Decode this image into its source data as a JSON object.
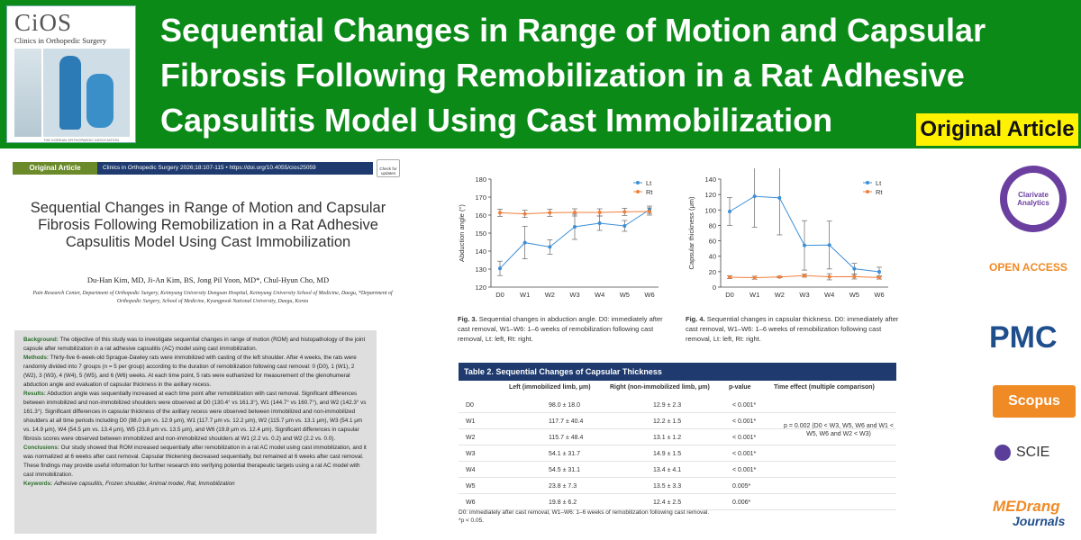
{
  "banner": {
    "title": "Sequential Changes in Range of Motion and Capsular Fibrosis Following Remobilization in a Rat Adhesive Capsulitis Model Using Cast Immobilization",
    "badge": "Original Article",
    "cover_logo": "CiOS",
    "cover_subtitle": "Clinics in Orthopedic Surgery",
    "cover_footer": "THE KOREAN ORTHOPAEDIC ASSOCIATION"
  },
  "paper": {
    "label": "Original Article",
    "meta": "Clinics in Orthopedic Surgery 2026;18:107-115 • https://doi.org/10.4055/cios25059",
    "check": "Check for updates",
    "title": "Sequential Changes in Range of Motion and Capsular Fibrosis Following Remobilization in a Rat Adhesive Capsulitis Model Using Cast Immobilization",
    "authors": "Du-Han Kim, MD, Ji-An Kim, BS, Jong Pil Yoon, MD*, Chul-Hyun Cho, MD",
    "affiliation": "Pain Research Center, Department of Orthopedic Surgery, Keimyung University Dongsan Hospital, Keimyung University School of Medicine, Daegu, *Department of Orthopedic Surgery, School of Medicine, Kyungpook National University, Daegu, Korea",
    "abstract": [
      {
        "head": "Background:",
        "text": "The objective of this study was to investigate sequential changes in range of motion (ROM) and histopathology of the joint capsule after remobilization in a rat adhesive capsulitis (AC) model using cast immobilization."
      },
      {
        "head": "Methods:",
        "text": "Thirty-five 6-week-old Sprague-Dawley rats were immobilized with casting of the left shoulder. After 4 weeks, the rats were randomly divided into 7 groups (n = 5 per group) according to the duration of remobilization following cast removal: 0 (D0), 1 (W1), 2 (W2), 3 (W3), 4 (W4), 5 (W5), and 6 (W6) weeks. At each time point, 5 rats were euthanized for measurement of the glenohumeral abduction angle and evaluation of capsular thickness in the axillary recess."
      },
      {
        "head": "Results:",
        "text": "Abduction angle was sequentially increased at each time point after remobilization with cast removal. Significant differences between immobilized and non-immobilized shoulders were observed at D0 (130.4° vs 161.3°), W1 (144.7° vs 160.7°), and W2 (142.3° vs 161.3°). Significant differences in capsular thickness of the axillary recess were observed between immobilized and non-immobilized shoulders at all time periods including D0 (98.0 μm vs. 12.9 μm), W1 (117.7 μm vs. 12.2 μm), W2 (115.7 μm vs. 13.1 μm), W3 (54.1 μm vs. 14.9 μm), W4 (54.5 μm vs. 13.4 μm), W5 (23.8 μm vs. 13.5 μm), and W6 (19.8 μm vs. 12.4 μm). Significant differences in capsular fibrosis scores were observed between immobilized and non-immobilized shoulders at W1 (2.2 vs. 0.2) and W2 (2.2 vs. 0.0)."
      },
      {
        "head": "Conclusions:",
        "text": "Our study showed that ROM increased sequentially after remobilization in a rat AC model using cast immobilization, and it was normalized at 6 weeks after cast removal. Capsular thickening decreased sequentially, but remained at 6 weeks after cast removal. These findings may provide useful information for further research into verifying potential therapeutic targets using a rat AC model with cast immobilization."
      },
      {
        "head": "Keywords:",
        "text": "Adhesive capsulitis, Frozen shoulder, Animal model, Rat, Immobilization"
      }
    ]
  },
  "chart_data": [
    {
      "type": "line",
      "title": "",
      "xlabel": "",
      "ylabel": "Abduction angle (°)",
      "categories": [
        "D0",
        "W1",
        "W2",
        "W3",
        "W4",
        "W5",
        "W6"
      ],
      "ylim": [
        120,
        180
      ],
      "yticks": [
        120,
        130,
        140,
        150,
        160,
        170,
        180
      ],
      "series": [
        {
          "name": "Lt",
          "color": "#3b8fd6",
          "values": [
            130.4,
            144.7,
            142.3,
            153.5,
            155.5,
            154,
            163
          ],
          "err": [
            4,
            9,
            4,
            7,
            4,
            3,
            2
          ]
        },
        {
          "name": "Rt",
          "color": "#f07f3c",
          "values": [
            161.3,
            160.7,
            161.3,
            161.5,
            161.5,
            161.8,
            162
          ],
          "err": [
            2,
            2,
            2,
            2,
            2,
            2,
            2
          ]
        }
      ],
      "caption_label": "Fig. 3.",
      "caption": "Sequential changes in abduction angle. D0: immediately after cast removal, W1–W6: 1–6 weeks of remobilization following cast removal, Lt: left, Rt: right."
    },
    {
      "type": "line",
      "title": "",
      "xlabel": "",
      "ylabel": "Capsular thickness (μm)",
      "categories": [
        "D0",
        "W1",
        "W2",
        "W3",
        "W4",
        "W5",
        "W6"
      ],
      "ylim": [
        0,
        140
      ],
      "yticks": [
        0,
        20,
        40,
        60,
        80,
        100,
        120,
        140
      ],
      "series": [
        {
          "name": "Lt",
          "color": "#3b8fd6",
          "values": [
            98.0,
            117.7,
            115.7,
            54.1,
            54.5,
            23.8,
            19.8
          ],
          "err": [
            18,
            40,
            48,
            32,
            31,
            7,
            6
          ]
        },
        {
          "name": "Rt",
          "color": "#f07f3c",
          "values": [
            12.9,
            12.2,
            13.1,
            14.9,
            13.4,
            13.5,
            12.4
          ],
          "err": [
            2,
            2,
            1,
            2,
            4,
            3,
            2
          ]
        }
      ],
      "caption_label": "Fig. 4.",
      "caption": "Sequential changes in capsular thickness. D0: immediately after cast removal, W1–W6: 1–6 weeks of remobilization following cast removal, Lt: left, Rt: right."
    }
  ],
  "table": {
    "title": "Table 2. Sequential Changes of Capsular Thickness",
    "headers": [
      "",
      "Left (immobilized limb, μm)",
      "Right (non-immobilized limb, μm)",
      "p-value",
      "Time effect (multiple comparison)"
    ],
    "rows": [
      [
        "D0",
        "98.0 ± 18.0",
        "12.9 ± 2.3",
        "< 0.001*"
      ],
      [
        "W1",
        "117.7 ± 40.4",
        "12.2 ± 1.5",
        "< 0.001*"
      ],
      [
        "W2",
        "115.7 ± 48.4",
        "13.1 ± 1.2",
        "< 0.001*"
      ],
      [
        "W3",
        "54.1 ± 31.7",
        "14.9 ± 1.5",
        "< 0.001*"
      ],
      [
        "W4",
        "54.5 ± 31.1",
        "13.4 ± 4.1",
        "< 0.001*"
      ],
      [
        "W5",
        "23.8 ± 7.3",
        "13.5 ± 3.3",
        "0.005*"
      ],
      [
        "W6",
        "19.8 ± 6.2",
        "12.4 ± 2.5",
        "0.006*"
      ]
    ],
    "time_effect": "p = 0.002 (D0 < W3, W5, W6 and W1 < W5, W6 and W2 < W3)",
    "footnote1": "D0: immediately after cast removal, W1–W6: 1–6 weeks of remobilization following cast removal.",
    "footnote2": "*p < 0.05."
  },
  "indexing": {
    "clarivate": "Clarivate Analytics",
    "open_access": "OPEN ACCESS",
    "pmc": "PMC",
    "scopus": "Scopus",
    "scie": "SCIE",
    "medrang_1": "MEDrang",
    "medrang_2": "Journals"
  }
}
